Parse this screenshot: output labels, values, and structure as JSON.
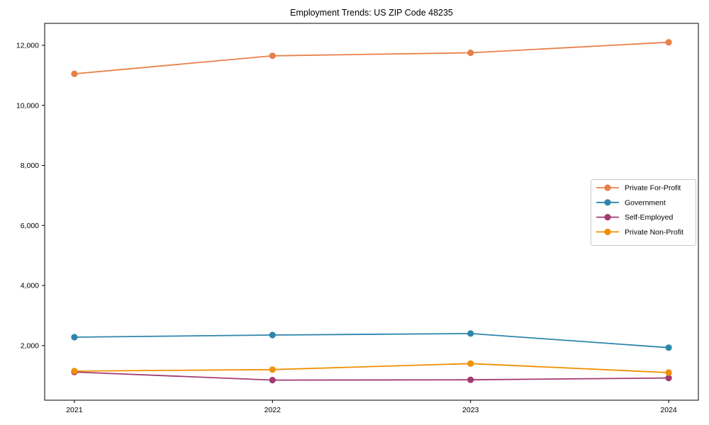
{
  "figure": {
    "title": "Employment Trends: US ZIP Code 48235"
  },
  "chart_data": {
    "type": "line",
    "title": "Employment Trends: US ZIP Code 48235",
    "xlabel": "",
    "ylabel": "",
    "x": [
      2021,
      2022,
      2023,
      2024
    ],
    "xticklabels": [
      "2021",
      "2022",
      "2023",
      "2024"
    ],
    "yticks": [
      2000,
      4000,
      6000,
      8000,
      10000,
      12000
    ],
    "yticklabels": [
      "2,000",
      "4,000",
      "6,000",
      "8,000",
      "10,000",
      "12,000"
    ],
    "xlim": [
      2020.85,
      2024.15
    ],
    "ylim": [
      180,
      12730
    ],
    "grid": false,
    "legend_position": "center-right",
    "marker": "circle",
    "frame": "full-box",
    "axis_color": "#000000",
    "legend_border_color": "#c9c9c9",
    "series": [
      {
        "name": "Private For-Profit",
        "color": "#E8804A",
        "values": [
          11050,
          11650,
          11750,
          12100
        ]
      },
      {
        "name": "Government",
        "color": "#2E86AB",
        "values": [
          2280,
          2350,
          2400,
          1930
        ]
      },
      {
        "name": "Self-Employed",
        "color": "#A23B72",
        "values": [
          1120,
          850,
          860,
          920
        ]
      },
      {
        "name": "Private Non-Profit",
        "color": "#F18F01",
        "values": [
          1150,
          1200,
          1400,
          1100
        ]
      }
    ]
  }
}
